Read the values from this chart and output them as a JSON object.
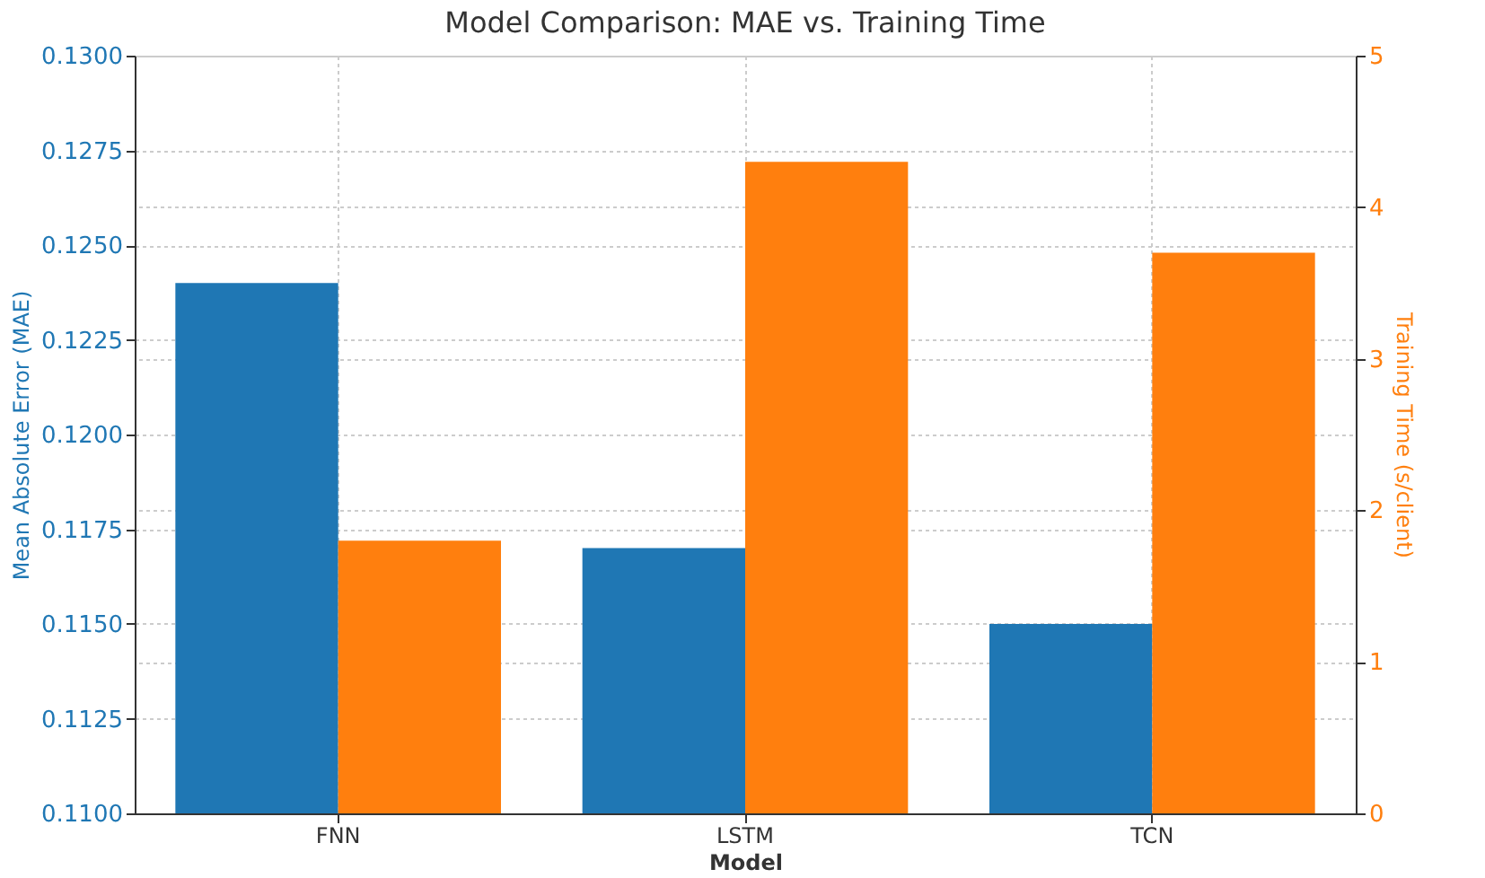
{
  "chart_data": {
    "type": "bar",
    "title": "Model Comparison: MAE vs. Training Time",
    "xlabel": "Model",
    "ylabel": "Mean Absolute Error (MAE)",
    "y2label": "Training Time (s/client)",
    "categories": [
      "FNN",
      "LSTM",
      "TCN"
    ],
    "series": [
      {
        "color": "#1f77b4",
        "values": [
          0.124,
          0.117,
          0.115
        ]
      },
      {
        "color": "#ff7f0e",
        "values": [
          1.8,
          4.3,
          3.7
        ],
        "axis": "y2"
      }
    ],
    "ylim": [
      0.11,
      0.13
    ],
    "yticks": [
      {
        "value": 0.11,
        "label": "0.1100"
      },
      {
        "value": 0.1125,
        "label": "0.1125"
      },
      {
        "value": 0.115,
        "label": "0.1150"
      },
      {
        "value": 0.1175,
        "label": "0.1175"
      },
      {
        "value": 0.12,
        "label": "0.1200"
      },
      {
        "value": 0.1225,
        "label": "0.1225"
      },
      {
        "value": 0.125,
        "label": "0.1250"
      },
      {
        "value": 0.1275,
        "label": "0.1275"
      },
      {
        "value": 0.13,
        "label": "0.1300"
      }
    ],
    "y2lim": [
      0,
      5
    ],
    "y2ticks": [
      0,
      1,
      2,
      3,
      4,
      5
    ],
    "grid": true
  }
}
